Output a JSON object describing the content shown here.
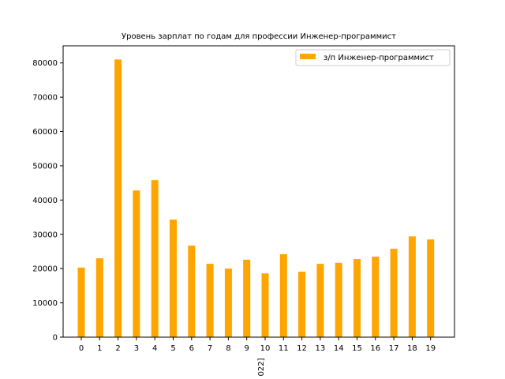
{
  "chart_data": {
    "type": "bar",
    "title": "Уровень зарплат по годам для профессии Инженер-программист",
    "xlabel": "022]",
    "ylabel": "",
    "categories": [
      "0",
      "1",
      "2",
      "3",
      "4",
      "5",
      "6",
      "7",
      "8",
      "9",
      "10",
      "11",
      "12",
      "13",
      "14",
      "15",
      "16",
      "17",
      "18",
      "19"
    ],
    "series": [
      {
        "name": "з/п Инженер-программист",
        "color": "#ffa500",
        "values": [
          20300,
          23000,
          81000,
          42800,
          45800,
          34300,
          26700,
          21400,
          20000,
          22600,
          18600,
          24200,
          19100,
          21400,
          21700,
          22800,
          23500,
          25800,
          29400,
          28500
        ]
      }
    ],
    "yticks": [
      "0",
      "10000",
      "20000",
      "30000",
      "40000",
      "50000",
      "60000",
      "70000",
      "80000"
    ],
    "ylim": [
      0,
      85000
    ],
    "grid": false,
    "legend_position": "top-right"
  }
}
